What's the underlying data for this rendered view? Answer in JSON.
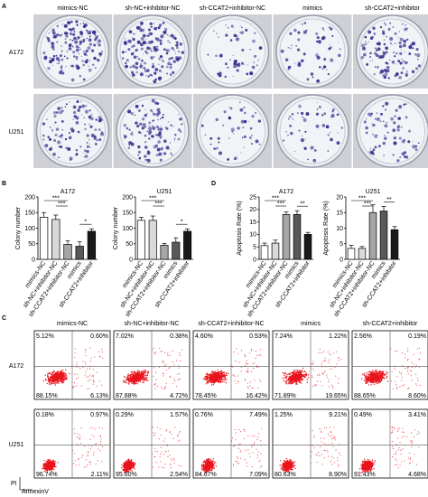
{
  "panel_labels": [
    "A",
    "B",
    "C",
    "D"
  ],
  "colony": {
    "columns": [
      "mimics-NC",
      "sh-NC+inhibitor-NC",
      "sh-CCAT2+inhibitor-NC",
      "mimics",
      "sh-CCAT2+inhibitor"
    ],
    "rows": [
      "A172",
      "U251"
    ]
  },
  "chart_data": [
    {
      "type": "bar",
      "title": "A172",
      "y_label": "Colony number",
      "categories": [
        "mimics-NC",
        "sh-NC+inhibitor-NC",
        "sh-CCAT2+inhibitor-NC",
        "mimics",
        "sh-CCAT2+inhibitor"
      ],
      "values": [
        135,
        128,
        48,
        42,
        90
      ],
      "errors": [
        15,
        14,
        12,
        14,
        8
      ],
      "colors": [
        "#ffffff",
        "#d9d9d9",
        "#a6a6a6",
        "#595959",
        "#1a1a1a"
      ],
      "ylim": [
        0,
        200
      ],
      "yticks": [
        0,
        50,
        100,
        150,
        200
      ],
      "annotations": [
        "***",
        "***",
        "*"
      ]
    },
    {
      "type": "bar",
      "title": "U251",
      "y_label": "Colony number",
      "categories": [
        "mimics-NC",
        "sh-NC+inhibitor-NC",
        "sh-CCAT2+inhibitor-NC",
        "mimics",
        "sh-CCAT2+inhibitor"
      ],
      "values": [
        125,
        125,
        45,
        55,
        90
      ],
      "errors": [
        10,
        14,
        6,
        14,
        8
      ],
      "colors": [
        "#ffffff",
        "#d9d9d9",
        "#a6a6a6",
        "#595959",
        "#1a1a1a"
      ],
      "ylim": [
        0,
        200
      ],
      "yticks": [
        0,
        50,
        100,
        150,
        200
      ],
      "annotations": [
        "***",
        "***",
        "*"
      ]
    },
    {
      "type": "bar",
      "title": "A172",
      "y_label": "Apoptosis Rate (%)",
      "categories": [
        "mimics-NC",
        "sh-NC+inhibitor-NC",
        "sh-CCAT2+inhibitor-NC",
        "mimics",
        "sh-CCAT2+inhibitor"
      ],
      "values": [
        5.5,
        6.5,
        18,
        18,
        10
      ],
      "errors": [
        1,
        1.2,
        1,
        1.5,
        0.8
      ],
      "colors": [
        "#ffffff",
        "#d9d9d9",
        "#a6a6a6",
        "#595959",
        "#1a1a1a"
      ],
      "ylim": [
        0,
        25
      ],
      "yticks": [
        0,
        5,
        10,
        15,
        20,
        25
      ],
      "annotations": [
        "***",
        "***",
        "**"
      ]
    },
    {
      "type": "bar",
      "title": "U251",
      "y_label": "Apoptosis Rate (%)",
      "categories": [
        "mimics-NC",
        "sh-NC+inhibitor-NC",
        "sh-CCAT2+inhibitor-NC",
        "mimics",
        "sh-CCAT2+inhibitor"
      ],
      "values": [
        3.5,
        3.5,
        15,
        15.5,
        9.5
      ],
      "errors": [
        1,
        0.6,
        2.5,
        1.5,
        1
      ],
      "colors": [
        "#ffffff",
        "#d9d9d9",
        "#a6a6a6",
        "#595959",
        "#1a1a1a"
      ],
      "ylim": [
        0,
        20
      ],
      "yticks": [
        0,
        5,
        10,
        15,
        20
      ],
      "annotations": [
        "***",
        "***",
        "**"
      ]
    }
  ],
  "flow": {
    "columns": [
      "mimics-NC",
      "sh-NC+inhibitor-NC",
      "sh-CCAT2+inhibitor-NC",
      "mimics",
      "sh-CCAT2+inhibitor"
    ],
    "rows": [
      {
        "name": "A172",
        "quadrants": [
          [
            "5.12%",
            "0.60%",
            "88.15%",
            "6.13%"
          ],
          [
            "7.02%",
            "0.38%",
            "87.88%",
            "4.72%"
          ],
          [
            "4.60%",
            "0.53%",
            "78.45%",
            "16.42%"
          ],
          [
            "7.24%",
            "1.22%",
            "71.89%",
            "19.65%"
          ],
          [
            "2.56%",
            "0.19%",
            "88.65%",
            "8.60%"
          ]
        ]
      },
      {
        "name": "U251",
        "quadrants": [
          [
            "0.18%",
            "0.97%",
            "96.74%",
            "2.11%"
          ],
          [
            "0.29%",
            "1.57%",
            "95.60%",
            "2.54%"
          ],
          [
            "0.76%",
            "7.49%",
            "84.67%",
            "7.09%"
          ],
          [
            "1.25%",
            "9.21%",
            "80.63%",
            "8.90%"
          ],
          [
            "0.49%",
            "3.41%",
            "91.43%",
            "4.68%"
          ]
        ]
      }
    ],
    "y_axis": "PI",
    "x_axis": "AnnexinV"
  }
}
